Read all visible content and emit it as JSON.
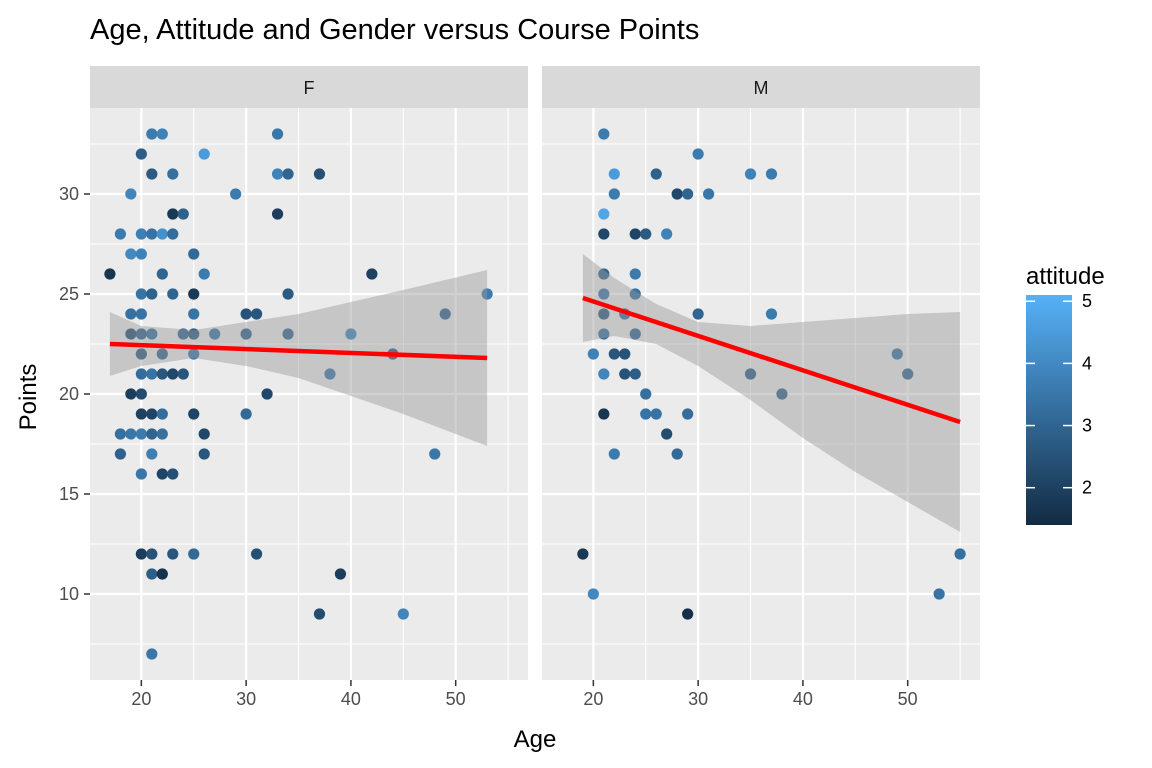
{
  "chart_data": {
    "type": "scatter",
    "title": "Age, Attitude and Gender versus Course Points",
    "xlabel": "Age",
    "ylabel": "Points",
    "xlim": [
      15.1,
      56.9
    ],
    "ylim": [
      5.7,
      34.3
    ],
    "x_ticks": [
      20,
      30,
      40,
      50
    ],
    "y_ticks": [
      10,
      15,
      20,
      25,
      30
    ],
    "grid": true,
    "legend": {
      "title": "attitude",
      "position": "right",
      "range": [
        1.4,
        5.1
      ],
      "ticks": [
        2,
        3,
        4,
        5
      ],
      "low_color": "#132b43",
      "high_color": "#56b1f7"
    },
    "colors": {
      "panel_background": "#ebebeb",
      "strip_background": "#d9d9d9",
      "grid": "#ffffff",
      "regression_line": "#ff0000",
      "confidence_band": "#999999"
    },
    "facets": [
      {
        "label": "F",
        "regression": {
          "x": [
            17,
            53
          ],
          "y": [
            22.5,
            21.8
          ]
        },
        "band": {
          "x": [
            17,
            20,
            25,
            30,
            35,
            40,
            45,
            53
          ],
          "upper": [
            24.1,
            23.4,
            23.2,
            23.6,
            24.0,
            24.6,
            25.2,
            26.2
          ],
          "lower": [
            20.9,
            21.4,
            21.8,
            21.4,
            20.8,
            19.9,
            19.0,
            17.4
          ]
        },
        "points": [
          {
            "x": 17,
            "y": 26,
            "a": 1.7
          },
          {
            "x": 18,
            "y": 28,
            "a": 3.6
          },
          {
            "x": 18,
            "y": 18,
            "a": 3.3
          },
          {
            "x": 18,
            "y": 17,
            "a": 2.9
          },
          {
            "x": 19,
            "y": 30,
            "a": 3.9
          },
          {
            "x": 19,
            "y": 27,
            "a": 4.0
          },
          {
            "x": 19,
            "y": 24,
            "a": 3.3
          },
          {
            "x": 19,
            "y": 23,
            "a": 2.3
          },
          {
            "x": 19,
            "y": 20,
            "a": 1.9
          },
          {
            "x": 19,
            "y": 18,
            "a": 3.5
          },
          {
            "x": 20,
            "y": 32,
            "a": 2.8
          },
          {
            "x": 20,
            "y": 28,
            "a": 3.7
          },
          {
            "x": 20,
            "y": 27,
            "a": 3.8
          },
          {
            "x": 20,
            "y": 25,
            "a": 3.4
          },
          {
            "x": 20,
            "y": 24,
            "a": 3.4
          },
          {
            "x": 20,
            "y": 23,
            "a": 2.9
          },
          {
            "x": 20,
            "y": 22,
            "a": 2.7
          },
          {
            "x": 20,
            "y": 21,
            "a": 3.2
          },
          {
            "x": 20,
            "y": 20,
            "a": 2.3
          },
          {
            "x": 20,
            "y": 19,
            "a": 2.0
          },
          {
            "x": 20,
            "y": 18,
            "a": 3.6
          },
          {
            "x": 20,
            "y": 16,
            "a": 3.5
          },
          {
            "x": 20,
            "y": 12,
            "a": 1.9
          },
          {
            "x": 21,
            "y": 33,
            "a": 3.6
          },
          {
            "x": 21,
            "y": 31,
            "a": 2.7
          },
          {
            "x": 21,
            "y": 28,
            "a": 3.4
          },
          {
            "x": 21,
            "y": 25,
            "a": 2.9
          },
          {
            "x": 21,
            "y": 23,
            "a": 3.3
          },
          {
            "x": 21,
            "y": 21,
            "a": 3.4
          },
          {
            "x": 21,
            "y": 19,
            "a": 2.1
          },
          {
            "x": 21,
            "y": 18,
            "a": 3.0
          },
          {
            "x": 21,
            "y": 17,
            "a": 3.7
          },
          {
            "x": 21,
            "y": 12,
            "a": 2.5
          },
          {
            "x": 21,
            "y": 11,
            "a": 2.8
          },
          {
            "x": 21,
            "y": 7,
            "a": 3.5
          },
          {
            "x": 22,
            "y": 33,
            "a": 3.8
          },
          {
            "x": 22,
            "y": 28,
            "a": 4.2
          },
          {
            "x": 22,
            "y": 26,
            "a": 3.0
          },
          {
            "x": 22,
            "y": 22,
            "a": 3.0
          },
          {
            "x": 22,
            "y": 21,
            "a": 2.6
          },
          {
            "x": 22,
            "y": 19,
            "a": 3.2
          },
          {
            "x": 22,
            "y": 18,
            "a": 3.3
          },
          {
            "x": 22,
            "y": 16,
            "a": 2.1
          },
          {
            "x": 22,
            "y": 11,
            "a": 1.6
          },
          {
            "x": 23,
            "y": 31,
            "a": 3.3
          },
          {
            "x": 23,
            "y": 29,
            "a": 1.8
          },
          {
            "x": 23,
            "y": 28,
            "a": 3.2
          },
          {
            "x": 23,
            "y": 25,
            "a": 3.0
          },
          {
            "x": 23,
            "y": 21,
            "a": 2.2
          },
          {
            "x": 23,
            "y": 16,
            "a": 2.4
          },
          {
            "x": 23,
            "y": 12,
            "a": 2.6
          },
          {
            "x": 24,
            "y": 29,
            "a": 2.9
          },
          {
            "x": 24,
            "y": 23,
            "a": 3.0
          },
          {
            "x": 24,
            "y": 21,
            "a": 2.6
          },
          {
            "x": 25,
            "y": 27,
            "a": 3.1
          },
          {
            "x": 25,
            "y": 25,
            "a": 1.8
          },
          {
            "x": 25,
            "y": 24,
            "a": 3.4
          },
          {
            "x": 25,
            "y": 23,
            "a": 2.7
          },
          {
            "x": 25,
            "y": 22,
            "a": 3.5
          },
          {
            "x": 25,
            "y": 19,
            "a": 2.1
          },
          {
            "x": 25,
            "y": 12,
            "a": 3.1
          },
          {
            "x": 26,
            "y": 32,
            "a": 4.5
          },
          {
            "x": 26,
            "y": 26,
            "a": 3.6
          },
          {
            "x": 26,
            "y": 18,
            "a": 2.2
          },
          {
            "x": 26,
            "y": 17,
            "a": 2.6
          },
          {
            "x": 27,
            "y": 23,
            "a": 3.4
          },
          {
            "x": 29,
            "y": 30,
            "a": 3.6
          },
          {
            "x": 30,
            "y": 24,
            "a": 2.5
          },
          {
            "x": 30,
            "y": 23,
            "a": 2.9
          },
          {
            "x": 30,
            "y": 19,
            "a": 3.1
          },
          {
            "x": 31,
            "y": 24,
            "a": 2.6
          },
          {
            "x": 31,
            "y": 12,
            "a": 2.4
          },
          {
            "x": 32,
            "y": 20,
            "a": 2.2
          },
          {
            "x": 33,
            "y": 33,
            "a": 3.5
          },
          {
            "x": 33,
            "y": 31,
            "a": 3.8
          },
          {
            "x": 33,
            "y": 29,
            "a": 1.9
          },
          {
            "x": 34,
            "y": 31,
            "a": 3.0
          },
          {
            "x": 34,
            "y": 25,
            "a": 2.7
          },
          {
            "x": 34,
            "y": 23,
            "a": 3.0
          },
          {
            "x": 37,
            "y": 31,
            "a": 2.4
          },
          {
            "x": 37,
            "y": 9,
            "a": 2.3
          },
          {
            "x": 38,
            "y": 21,
            "a": 3.5
          },
          {
            "x": 39,
            "y": 11,
            "a": 1.9
          },
          {
            "x": 40,
            "y": 23,
            "a": 3.9
          },
          {
            "x": 42,
            "y": 26,
            "a": 2.0
          },
          {
            "x": 44,
            "y": 22,
            "a": 2.6
          },
          {
            "x": 45,
            "y": 9,
            "a": 3.9
          },
          {
            "x": 48,
            "y": 17,
            "a": 3.5
          },
          {
            "x": 49,
            "y": 24,
            "a": 2.9
          },
          {
            "x": 53,
            "y": 25,
            "a": 3.6
          }
        ]
      },
      {
        "label": "M",
        "regression": {
          "x": [
            19,
            55
          ],
          "y": [
            24.8,
            18.6
          ]
        },
        "band": {
          "x": [
            19,
            22,
            26,
            30,
            35,
            40,
            45,
            50,
            55
          ],
          "upper": [
            27.0,
            25.8,
            24.5,
            23.6,
            23.4,
            23.6,
            23.8,
            24.0,
            24.1
          ],
          "lower": [
            22.6,
            22.9,
            22.5,
            21.4,
            19.7,
            17.8,
            16.1,
            14.6,
            13.1
          ]
        },
        "points": [
          {
            "x": 19,
            "y": 12,
            "a": 1.8
          },
          {
            "x": 20,
            "y": 22,
            "a": 3.8
          },
          {
            "x": 20,
            "y": 10,
            "a": 4.0
          },
          {
            "x": 21,
            "y": 33,
            "a": 3.6
          },
          {
            "x": 21,
            "y": 29,
            "a": 4.8
          },
          {
            "x": 21,
            "y": 28,
            "a": 2.2
          },
          {
            "x": 21,
            "y": 26,
            "a": 3.0
          },
          {
            "x": 21,
            "y": 25,
            "a": 3.5
          },
          {
            "x": 21,
            "y": 24,
            "a": 2.7
          },
          {
            "x": 21,
            "y": 23,
            "a": 3.4
          },
          {
            "x": 21,
            "y": 21,
            "a": 3.9
          },
          {
            "x": 21,
            "y": 19,
            "a": 1.7
          },
          {
            "x": 22,
            "y": 31,
            "a": 4.5
          },
          {
            "x": 22,
            "y": 30,
            "a": 3.6
          },
          {
            "x": 22,
            "y": 22,
            "a": 2.6
          },
          {
            "x": 22,
            "y": 17,
            "a": 3.6
          },
          {
            "x": 23,
            "y": 24,
            "a": 3.2
          },
          {
            "x": 23,
            "y": 22,
            "a": 2.5
          },
          {
            "x": 23,
            "y": 21,
            "a": 2.5
          },
          {
            "x": 24,
            "y": 28,
            "a": 2.1
          },
          {
            "x": 24,
            "y": 26,
            "a": 3.6
          },
          {
            "x": 24,
            "y": 25,
            "a": 3.3
          },
          {
            "x": 24,
            "y": 23,
            "a": 3.0
          },
          {
            "x": 24,
            "y": 21,
            "a": 2.8
          },
          {
            "x": 25,
            "y": 28,
            "a": 2.7
          },
          {
            "x": 25,
            "y": 20,
            "a": 3.3
          },
          {
            "x": 25,
            "y": 19,
            "a": 3.4
          },
          {
            "x": 26,
            "y": 31,
            "a": 2.9
          },
          {
            "x": 26,
            "y": 19,
            "a": 3.4
          },
          {
            "x": 27,
            "y": 28,
            "a": 3.8
          },
          {
            "x": 27,
            "y": 18,
            "a": 2.3
          },
          {
            "x": 28,
            "y": 30,
            "a": 2.2
          },
          {
            "x": 28,
            "y": 17,
            "a": 3.1
          },
          {
            "x": 29,
            "y": 30,
            "a": 3.0
          },
          {
            "x": 29,
            "y": 19,
            "a": 3.2
          },
          {
            "x": 29,
            "y": 9,
            "a": 1.5
          },
          {
            "x": 30,
            "y": 32,
            "a": 3.6
          },
          {
            "x": 30,
            "y": 24,
            "a": 3.0
          },
          {
            "x": 31,
            "y": 30,
            "a": 3.5
          },
          {
            "x": 35,
            "y": 31,
            "a": 3.8
          },
          {
            "x": 35,
            "y": 21,
            "a": 2.8
          },
          {
            "x": 37,
            "y": 31,
            "a": 3.6
          },
          {
            "x": 37,
            "y": 24,
            "a": 3.6
          },
          {
            "x": 38,
            "y": 20,
            "a": 3.0
          },
          {
            "x": 49,
            "y": 22,
            "a": 3.4
          },
          {
            "x": 50,
            "y": 21,
            "a": 3.1
          },
          {
            "x": 53,
            "y": 10,
            "a": 3.4
          },
          {
            "x": 55,
            "y": 12,
            "a": 3.3
          }
        ]
      }
    ]
  }
}
